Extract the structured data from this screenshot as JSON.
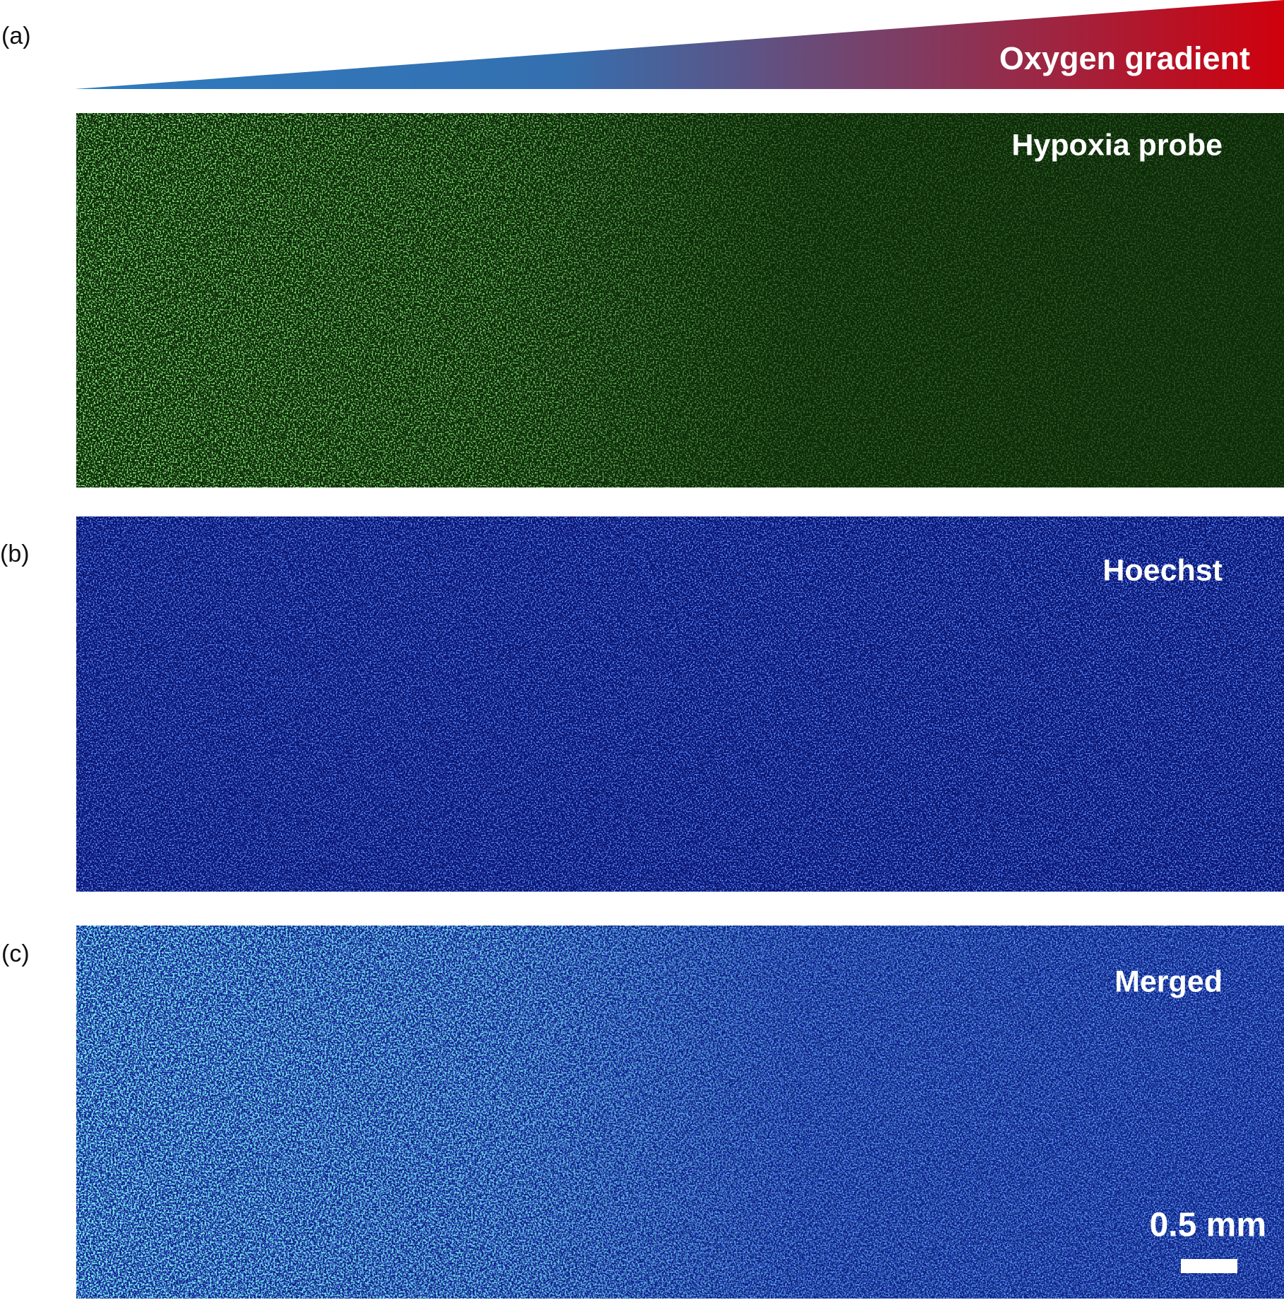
{
  "panel_labels": [
    "(a)",
    "(b)",
    "(c)"
  ],
  "gradient": {
    "label": "Oxygen gradient"
  },
  "panels": [
    {
      "label": "Hypoxia probe"
    },
    {
      "label": "Hoechst"
    },
    {
      "label": "Merged"
    }
  ],
  "scale_bar": {
    "label": "0.5 mm"
  }
}
